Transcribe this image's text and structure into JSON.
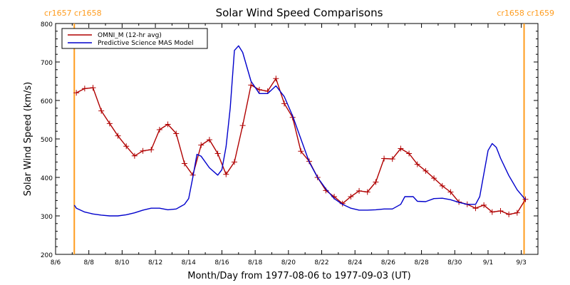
{
  "chart_data": {
    "type": "line",
    "title": "Solar Wind Speed Comparisons",
    "xlabel": "Month/Day from 1977-08-06 to 1977-09-03 (UT)",
    "ylabel": "Solar Wind Speed (km/s)",
    "x_start_date": "1977-08-06",
    "xlim": [
      "1977-08-06T00:00",
      "1977-09-04T00:00"
    ],
    "ylim": [
      200,
      800
    ],
    "x_ticks": [
      {
        "label": "8/6",
        "date": "1977-08-06"
      },
      {
        "label": "8/8",
        "date": "1977-08-08"
      },
      {
        "label": "8/10",
        "date": "1977-08-10"
      },
      {
        "label": "8/12",
        "date": "1977-08-12"
      },
      {
        "label": "8/14",
        "date": "1977-08-14"
      },
      {
        "label": "8/16",
        "date": "1977-08-16"
      },
      {
        "label": "8/18",
        "date": "1977-08-18"
      },
      {
        "label": "8/20",
        "date": "1977-08-20"
      },
      {
        "label": "8/22",
        "date": "1977-08-22"
      },
      {
        "label": "8/24",
        "date": "1977-08-24"
      },
      {
        "label": "8/26",
        "date": "1977-08-26"
      },
      {
        "label": "8/28",
        "date": "1977-08-28"
      },
      {
        "label": "8/30",
        "date": "1977-08-30"
      },
      {
        "label": "9/1",
        "date": "1977-09-01"
      },
      {
        "label": "9/3",
        "date": "1977-09-03"
      }
    ],
    "y_ticks": [
      200,
      300,
      400,
      500,
      600,
      700,
      800
    ],
    "carrington_markers": [
      {
        "date": "1977-08-07T03:00",
        "label": "cr1657 cr1658",
        "align": "left",
        "color": "#ff9c1e"
      },
      {
        "date": "1977-09-03T04:00",
        "label": "cr1658 cr1659",
        "align": "right",
        "color": "#ff9c1e"
      }
    ],
    "legend": {
      "position": "top-left"
    },
    "series": [
      {
        "name": "OMNI_M (12-hr avg)",
        "color": "#b00000",
        "marker": "plus",
        "points": [
          [
            "1977-08-07T06:00",
            620
          ],
          [
            "1977-08-07T18:00",
            631
          ],
          [
            "1977-08-08T06:00",
            633
          ],
          [
            "1977-08-08T18:00",
            573
          ],
          [
            "1977-08-09T06:00",
            540
          ],
          [
            "1977-08-09T18:00",
            508
          ],
          [
            "1977-08-10T06:00",
            481
          ],
          [
            "1977-08-10T18:00",
            456
          ],
          [
            "1977-08-11T06:00",
            469
          ],
          [
            "1977-08-11T18:00",
            472
          ],
          [
            "1977-08-12T06:00",
            524
          ],
          [
            "1977-08-12T18:00",
            538
          ],
          [
            "1977-08-13T06:00",
            514
          ],
          [
            "1977-08-13T18:00",
            436
          ],
          [
            "1977-08-14T06:00",
            406
          ],
          [
            "1977-08-14T18:00",
            484
          ],
          [
            "1977-08-15T06:00",
            498
          ],
          [
            "1977-08-15T18:00",
            462
          ],
          [
            "1977-08-16T06:00",
            408
          ],
          [
            "1977-08-16T18:00",
            440
          ],
          [
            "1977-08-17T06:00",
            535
          ],
          [
            "1977-08-17T18:00",
            640
          ],
          [
            "1977-08-18T06:00",
            628
          ],
          [
            "1977-08-18T18:00",
            624
          ],
          [
            "1977-08-19T06:00",
            657
          ],
          [
            "1977-08-19T18:00",
            592
          ],
          [
            "1977-08-20T06:00",
            556
          ],
          [
            "1977-08-20T18:00",
            468
          ],
          [
            "1977-08-21T06:00",
            442
          ],
          [
            "1977-08-21T18:00",
            400
          ],
          [
            "1977-08-22T06:00",
            366
          ],
          [
            "1977-08-22T18:00",
            350
          ],
          [
            "1977-08-23T06:00",
            332
          ],
          [
            "1977-08-23T18:00",
            350
          ],
          [
            "1977-08-24T06:00",
            365
          ],
          [
            "1977-08-24T18:00",
            362
          ],
          [
            "1977-08-25T06:00",
            388
          ],
          [
            "1977-08-25T18:00",
            449
          ],
          [
            "1977-08-26T06:00",
            448
          ],
          [
            "1977-08-26T18:00",
            475
          ],
          [
            "1977-08-27T06:00",
            462
          ],
          [
            "1977-08-27T18:00",
            434
          ],
          [
            "1977-08-28T06:00",
            417
          ],
          [
            "1977-08-28T18:00",
            398
          ],
          [
            "1977-08-29T06:00",
            378
          ],
          [
            "1977-08-29T18:00",
            362
          ],
          [
            "1977-08-30T06:00",
            336
          ],
          [
            "1977-08-30T18:00",
            330
          ],
          [
            "1977-08-31T06:00",
            320
          ],
          [
            "1977-08-31T18:00",
            328
          ],
          [
            "1977-09-01T06:00",
            310
          ],
          [
            "1977-09-01T18:00",
            313
          ],
          [
            "1977-09-02T06:00",
            304
          ],
          [
            "1977-09-02T18:00",
            308
          ],
          [
            "1977-09-03T06:00",
            343
          ]
        ]
      },
      {
        "name": "Predictive Science MAS Model",
        "color": "#0000cc",
        "marker": "none",
        "points": [
          [
            "1977-08-07T03:00",
            328
          ],
          [
            "1977-08-07T06:00",
            320
          ],
          [
            "1977-08-07T18:00",
            310
          ],
          [
            "1977-08-08T06:00",
            305
          ],
          [
            "1977-08-08T18:00",
            302
          ],
          [
            "1977-08-09T06:00",
            300
          ],
          [
            "1977-08-09T18:00",
            300
          ],
          [
            "1977-08-10T06:00",
            303
          ],
          [
            "1977-08-10T18:00",
            308
          ],
          [
            "1977-08-11T06:00",
            315
          ],
          [
            "1977-08-11T18:00",
            320
          ],
          [
            "1977-08-12T06:00",
            320
          ],
          [
            "1977-08-12T18:00",
            316
          ],
          [
            "1977-08-13T06:00",
            318
          ],
          [
            "1977-08-13T18:00",
            330
          ],
          [
            "1977-08-14T00:00",
            345
          ],
          [
            "1977-08-14T06:00",
            400
          ],
          [
            "1977-08-14T12:00",
            460
          ],
          [
            "1977-08-14T18:00",
            455
          ],
          [
            "1977-08-15T06:00",
            425
          ],
          [
            "1977-08-15T18:00",
            406
          ],
          [
            "1977-08-16T00:00",
            420
          ],
          [
            "1977-08-16T06:00",
            480
          ],
          [
            "1977-08-16T12:00",
            580
          ],
          [
            "1977-08-16T18:00",
            730
          ],
          [
            "1977-08-17T00:00",
            742
          ],
          [
            "1977-08-17T06:00",
            725
          ],
          [
            "1977-08-17T18:00",
            650
          ],
          [
            "1977-08-18T06:00",
            618
          ],
          [
            "1977-08-18T18:00",
            618
          ],
          [
            "1977-08-19T06:00",
            638
          ],
          [
            "1977-08-19T18:00",
            610
          ],
          [
            "1977-08-20T06:00",
            560
          ],
          [
            "1977-08-20T18:00",
            500
          ],
          [
            "1977-08-21T06:00",
            440
          ],
          [
            "1977-08-21T18:00",
            400
          ],
          [
            "1977-08-22T06:00",
            370
          ],
          [
            "1977-08-22T18:00",
            345
          ],
          [
            "1977-08-23T06:00",
            330
          ],
          [
            "1977-08-23T18:00",
            320
          ],
          [
            "1977-08-24T06:00",
            315
          ],
          [
            "1977-08-24T18:00",
            315
          ],
          [
            "1977-08-25T06:00",
            316
          ],
          [
            "1977-08-25T18:00",
            318
          ],
          [
            "1977-08-26T06:00",
            318
          ],
          [
            "1977-08-26T18:00",
            330
          ],
          [
            "1977-08-27T00:00",
            350
          ],
          [
            "1977-08-27T12:00",
            350
          ],
          [
            "1977-08-27T18:00",
            338
          ],
          [
            "1977-08-28T06:00",
            337
          ],
          [
            "1977-08-28T18:00",
            345
          ],
          [
            "1977-08-29T06:00",
            346
          ],
          [
            "1977-08-29T18:00",
            342
          ],
          [
            "1977-08-30T06:00",
            335
          ],
          [
            "1977-08-30T18:00",
            330
          ],
          [
            "1977-08-31T06:00",
            330
          ],
          [
            "1977-08-31T12:00",
            350
          ],
          [
            "1977-09-01T00:00",
            470
          ],
          [
            "1977-09-01T06:00",
            488
          ],
          [
            "1977-09-01T12:00",
            478
          ],
          [
            "1977-09-01T18:00",
            450
          ],
          [
            "1977-09-02T06:00",
            405
          ],
          [
            "1977-09-02T18:00",
            368
          ],
          [
            "1977-09-03T06:00",
            342
          ]
        ]
      }
    ]
  }
}
